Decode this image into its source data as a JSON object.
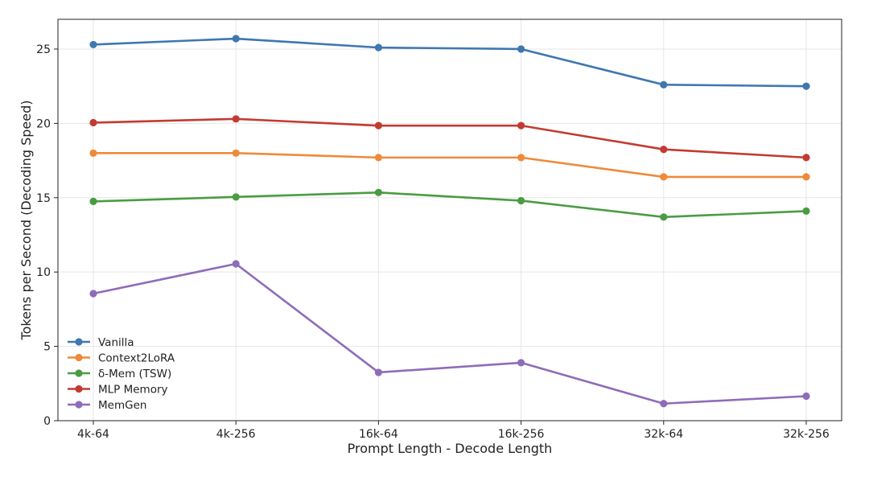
{
  "chart_data": {
    "type": "line",
    "title": "",
    "xlabel": "Prompt Length - Decode Length",
    "ylabel": "Tokens per Second (Decoding Speed)",
    "categories": [
      "4k-64",
      "4k-256",
      "16k-64",
      "16k-256",
      "32k-64",
      "32k-256"
    ],
    "ylim": [
      0,
      27
    ],
    "yticks": [
      0,
      5,
      10,
      15,
      20,
      25
    ],
    "grid": true,
    "legend_position": "lower-left",
    "series": [
      {
        "name": "Vanilla",
        "color": "#3f77b0",
        "values": [
          25.3,
          25.7,
          25.1,
          25.0,
          22.6,
          22.5
        ]
      },
      {
        "name": "Context2LoRA",
        "color": "#ee8a3a",
        "values": [
          18.0,
          18.0,
          17.7,
          17.7,
          16.4,
          16.4
        ]
      },
      {
        "name": "δ-Mem (TSW)",
        "color": "#4a9c42",
        "values": [
          14.75,
          15.05,
          15.35,
          14.8,
          13.7,
          14.1
        ]
      },
      {
        "name": "MLP Memory",
        "color": "#c23b33",
        "values": [
          20.05,
          20.3,
          19.85,
          19.85,
          18.25,
          17.7
        ]
      },
      {
        "name": "MemGen",
        "color": "#8e6cb9",
        "values": [
          8.55,
          10.55,
          3.25,
          3.9,
          1.15,
          1.65
        ]
      }
    ]
  }
}
